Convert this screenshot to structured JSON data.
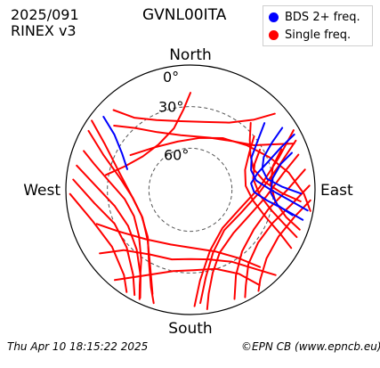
{
  "header": {
    "date": "2025/091",
    "format": "RINEX v3",
    "station": "GVNL00ITA"
  },
  "footer": {
    "timestamp": "Thu Apr 10 18:15:22 2025",
    "credit": "©EPN CB (www.epncb.eu)"
  },
  "chart_data": {
    "type": "polar-skyplot",
    "title": "GVNL00ITA",
    "directions": {
      "north": "North",
      "south": "South",
      "east": "East",
      "west": "West"
    },
    "elevation_rings": [
      0,
      30,
      60
    ],
    "elevation_labels": [
      "0°",
      "30°",
      "60°"
    ],
    "grid": true,
    "legend": {
      "position": "top-right",
      "entries": [
        {
          "name": "BDS 2+ freq.",
          "color": "#0000ff"
        },
        {
          "name": "Single freq.",
          "color": "#ff0000"
        }
      ]
    },
    "series": [
      {
        "name": "Single freq.",
        "color": "#ff0000",
        "tracks": [
          [
            [
              290,
              8
            ],
            [
              285,
              18
            ],
            [
              275,
              32
            ],
            [
              262,
              42
            ],
            [
              245,
              45
            ],
            [
              228,
              40
            ],
            [
              215,
              28
            ],
            [
              208,
              12
            ],
            [
              205,
              3
            ]
          ],
          [
            [
              300,
              5
            ],
            [
              292,
              22
            ],
            [
              280,
              38
            ],
            [
              262,
              48
            ],
            [
              240,
              50
            ],
            [
              220,
              42
            ],
            [
              208,
              28
            ],
            [
              200,
              10
            ]
          ],
          [
            [
              305,
              3
            ],
            [
              298,
              20
            ],
            [
              285,
              36
            ],
            [
              265,
              47
            ],
            [
              242,
              50
            ],
            [
              222,
              44
            ],
            [
              210,
              30
            ],
            [
              202,
              14
            ],
            [
              198,
              4
            ]
          ],
          [
            [
              282,
              6
            ],
            [
              272,
              22
            ],
            [
              258,
              34
            ],
            [
              240,
              38
            ],
            [
              222,
              32
            ],
            [
              210,
              18
            ],
            [
              205,
              4
            ]
          ],
          [
            [
              275,
              5
            ],
            [
              262,
              20
            ],
            [
              246,
              30
            ],
            [
              228,
              28
            ],
            [
              214,
              16
            ],
            [
              208,
              4
            ]
          ],
          [
            [
              268,
              3
            ],
            [
              252,
              16
            ],
            [
              234,
              20
            ],
            [
              218,
              12
            ],
            [
              212,
              3
            ]
          ],
          [
            [
              72,
              8
            ],
            [
              80,
              22
            ],
            [
              95,
              35
            ],
            [
              115,
              44
            ],
            [
              135,
              46
            ],
            [
              155,
              40
            ],
            [
              165,
              28
            ],
            [
              170,
              14
            ],
            [
              172,
              3
            ]
          ],
          [
            [
              65,
              6
            ],
            [
              75,
              24
            ],
            [
              92,
              40
            ],
            [
              115,
              50
            ],
            [
              140,
              52
            ],
            [
              160,
              42
            ],
            [
              170,
              26
            ],
            [
              175,
              8
            ]
          ],
          [
            [
              60,
              4
            ],
            [
              70,
              22
            ],
            [
              88,
              40
            ],
            [
              112,
              52
            ],
            [
              140,
              54
            ],
            [
              162,
              44
            ],
            [
              174,
              24
            ],
            [
              178,
              6
            ]
          ],
          [
            [
              80,
              6
            ],
            [
              90,
              20
            ],
            [
              104,
              32
            ],
            [
              122,
              36
            ],
            [
              140,
              32
            ],
            [
              152,
              20
            ],
            [
              158,
              5
            ]
          ],
          [
            [
              88,
              4
            ],
            [
              98,
              16
            ],
            [
              112,
              26
            ],
            [
              128,
              28
            ],
            [
              142,
              22
            ],
            [
              150,
              10
            ],
            [
              153,
              3
            ]
          ],
          [
            [
              95,
              3
            ],
            [
              104,
              12
            ],
            [
              118,
              18
            ],
            [
              132,
              16
            ],
            [
              142,
              8
            ],
            [
              146,
              2
            ]
          ],
          [
            [
              300,
              40
            ],
            [
              320,
              50
            ],
            [
              345,
              54
            ],
            [
              10,
              52
            ],
            [
              32,
              46
            ],
            [
              52,
              38
            ],
            [
              68,
              28
            ],
            [
              80,
              18
            ],
            [
              92,
              8
            ],
            [
              100,
              2
            ]
          ],
          [
            [
              60,
              32
            ],
            [
              68,
              40
            ],
            [
              80,
              44
            ],
            [
              94,
              40
            ],
            [
              104,
              30
            ],
            [
              110,
              18
            ],
            [
              114,
              6
            ]
          ],
          [
            [
              50,
              30
            ],
            [
              58,
              40
            ],
            [
              70,
              48
            ],
            [
              86,
              50
            ],
            [
              100,
              44
            ],
            [
              110,
              32
            ],
            [
              116,
              18
            ],
            [
              120,
              6
            ]
          ],
          [
            [
              66,
              18
            ],
            [
              74,
              28
            ],
            [
              86,
              32
            ],
            [
              98,
              28
            ],
            [
              106,
              18
            ],
            [
              110,
              6
            ]
          ],
          [
            [
              42,
              25
            ],
            [
              50,
              34
            ],
            [
              60,
              40
            ],
            [
              72,
              42
            ],
            [
              84,
              36
            ],
            [
              92,
              24
            ],
            [
              96,
              10
            ]
          ],
          [
            [
              280,
              28
            ],
            [
              290,
              40
            ],
            [
              305,
              48
            ],
            [
              325,
              50
            ],
            [
              345,
              44
            ],
            [
              355,
              32
            ],
            [
              0,
              20
            ]
          ],
          [
            [
              235,
              10
            ],
            [
              228,
              25
            ],
            [
              212,
              35
            ],
            [
              195,
              38
            ],
            [
              180,
              40
            ],
            [
              165,
              38
            ],
            [
              150,
              30
            ],
            [
              140,
              15
            ],
            [
              135,
              3
            ]
          ],
          [
            [
              220,
              5
            ],
            [
              208,
              20
            ],
            [
              192,
              30
            ],
            [
              178,
              32
            ],
            [
              162,
              30
            ],
            [
              150,
              20
            ],
            [
              144,
              5
            ]
          ],
          [
            [
              250,
              18
            ],
            [
              240,
              30
            ],
            [
              222,
              42
            ],
            [
              200,
              48
            ],
            [
              178,
              48
            ],
            [
              158,
              42
            ],
            [
              145,
              30
            ],
            [
              138,
              15
            ]
          ],
          [
            [
              310,
              18
            ],
            [
              318,
              30
            ],
            [
              330,
              42
            ],
            [
              350,
              50
            ],
            [
              20,
              50
            ],
            [
              40,
              44
            ],
            [
              55,
              34
            ],
            [
              62,
              20
            ],
            [
              66,
              8
            ]
          ],
          [
            [
              316,
              10
            ],
            [
              322,
              24
            ],
            [
              334,
              34
            ],
            [
              352,
              40
            ],
            [
              12,
              40
            ],
            [
              30,
              34
            ],
            [
              42,
              22
            ],
            [
              48,
              8
            ]
          ]
        ]
      },
      {
        "name": "BDS 2+ freq.",
        "color": "#0000ff",
        "tracks": [
          [
            [
              310,
              8
            ],
            [
              306,
              22
            ],
            [
              298,
              34
            ],
            [
              288,
              42
            ]
          ],
          [
            [
              62,
              5
            ],
            [
              65,
              18
            ],
            [
              70,
              30
            ],
            [
              76,
              40
            ],
            [
              84,
              46
            ],
            [
              92,
              44
            ],
            [
              98,
              34
            ],
            [
              102,
              20
            ],
            [
              105,
              6
            ]
          ],
          [
            [
              56,
              10
            ],
            [
              60,
              22
            ],
            [
              66,
              32
            ],
            [
              74,
              36
            ],
            [
              82,
              34
            ],
            [
              88,
              24
            ],
            [
              92,
              10
            ]
          ],
          [
            [
              70,
              12
            ],
            [
              74,
              22
            ],
            [
              82,
              30
            ],
            [
              92,
              32
            ],
            [
              100,
              26
            ],
            [
              104,
              14
            ]
          ],
          [
            [
              48,
              18
            ],
            [
              54,
              30
            ],
            [
              62,
              40
            ],
            [
              72,
              44
            ],
            [
              82,
              42
            ],
            [
              90,
              32
            ],
            [
              96,
              18
            ],
            [
              100,
              4
            ]
          ]
        ]
      }
    ]
  }
}
